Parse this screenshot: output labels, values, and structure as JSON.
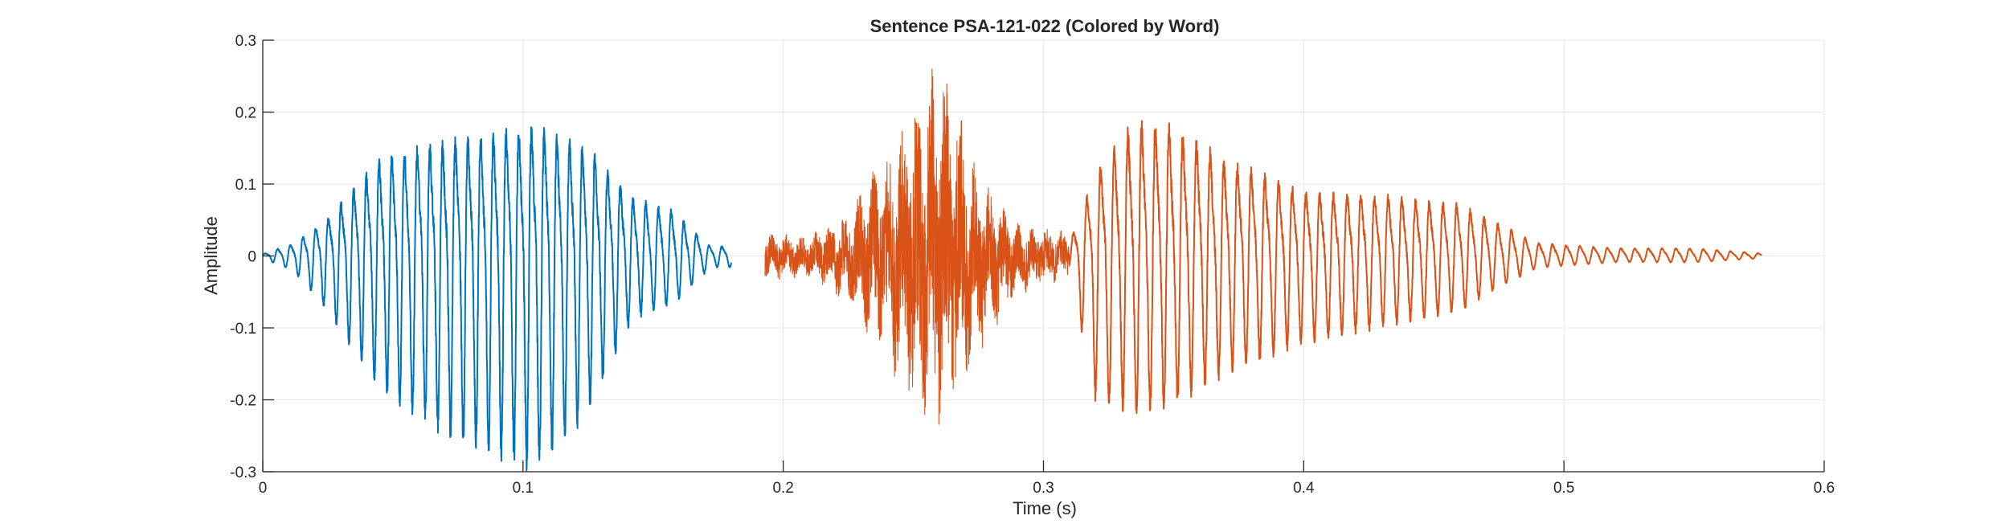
{
  "chart_data": {
    "type": "line",
    "title": "Sentence PSA-121-022 (Colored by Word)",
    "xlabel": "Time (s)",
    "ylabel": "Amplitude",
    "xlim": [
      0,
      0.6
    ],
    "ylim": [
      -0.3,
      0.3
    ],
    "xticks": [
      0,
      0.1,
      0.2,
      0.3,
      0.4,
      0.5,
      0.6
    ],
    "xtick_labels": [
      "0",
      "0.1",
      "0.2",
      "0.3",
      "0.4",
      "0.5",
      "0.6"
    ],
    "yticks": [
      -0.3,
      -0.2,
      -0.1,
      0,
      0.1,
      0.2,
      0.3
    ],
    "ytick_labels": [
      "-0.3",
      "-0.2",
      "-0.1",
      "0",
      "0.1",
      "0.2",
      "0.3"
    ],
    "grid": true,
    "series": [
      {
        "color": "#0072BD",
        "segments": [
          {
            "x": [
              0.0,
              0.18
            ],
            "peak_times": [
              0.0,
              0.012,
              0.025,
              0.045,
              0.065,
              0.085,
              0.105,
              0.125,
              0.142,
              0.158,
              0.172
            ],
            "peak_amplitudes": [
              0.003,
              0.02,
              0.06,
              0.15,
              0.175,
              0.19,
              0.2,
              0.17,
              0.09,
              0.07,
              0.015
            ],
            "trough_amplitudes": [
              -0.003,
              -0.02,
              -0.07,
              -0.17,
              -0.22,
              -0.25,
              -0.27,
              -0.2,
              -0.08,
              -0.06,
              -0.015
            ]
          }
        ]
      },
      {
        "color": "#D95319",
        "segments": [
          {
            "x": [
              0.193,
              0.31
            ],
            "peak_times": [
              0.193,
              0.21,
              0.225,
              0.24,
              0.25,
              0.262,
              0.275,
              0.29,
              0.31
            ],
            "peak_amplitudes": [
              0.03,
              0.025,
              0.06,
              0.13,
              0.19,
              0.255,
              0.1,
              0.04,
              0.03
            ],
            "trough_amplitudes": [
              -0.03,
              -0.025,
              -0.06,
              -0.13,
              -0.2,
              -0.21,
              -0.12,
              -0.05,
              -0.025
            ]
          },
          {
            "x": [
              0.31,
              0.576
            ],
            "peak_times": [
              0.31,
              0.32,
              0.335,
              0.35,
              0.37,
              0.4,
              0.43,
              0.46,
              0.475,
              0.49,
              0.52,
              0.55,
              0.576
            ],
            "peak_amplitudes": [
              0.02,
              0.13,
              0.21,
              0.2,
              0.15,
              0.1,
              0.095,
              0.08,
              0.05,
              0.02,
              0.012,
              0.012,
              0.004
            ],
            "trough_amplitudes": [
              -0.02,
              -0.18,
              -0.2,
              -0.19,
              -0.15,
              -0.11,
              -0.09,
              -0.07,
              -0.04,
              -0.015,
              -0.008,
              -0.008,
              -0.003
            ]
          }
        ]
      }
    ]
  }
}
